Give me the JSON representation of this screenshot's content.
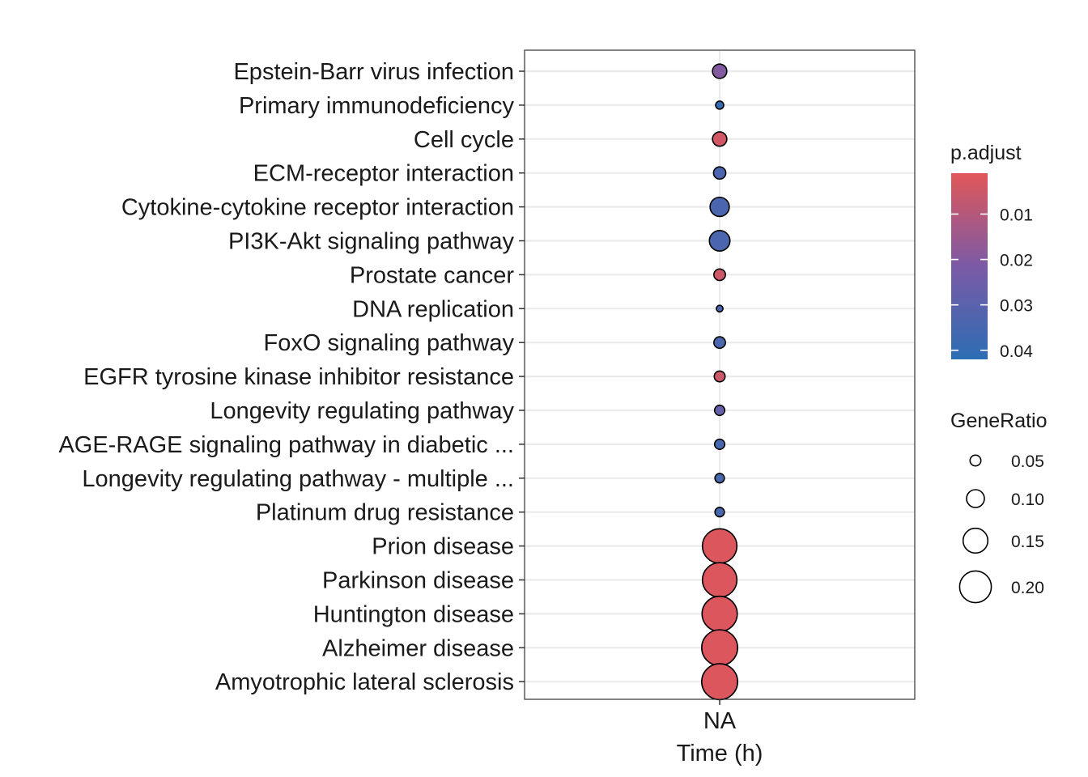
{
  "chart_data": {
    "type": "scatter",
    "xlabel": "Time (h)",
    "x_categories": [
      "NA"
    ],
    "categories": [
      "Epstein-Barr virus infection",
      "Primary immunodeficiency",
      "Cell cycle",
      "ECM-receptor interaction",
      "Cytokine-cytokine receptor interaction",
      "PI3K-Akt signaling pathway",
      "Prostate cancer",
      "DNA replication",
      "FoxO signaling pathway",
      "EGFR tyrosine kinase inhibitor resistance",
      "Longevity regulating pathway",
      "AGE-RAGE signaling pathway in diabetic ...",
      "Longevity regulating pathway - multiple ...",
      "Platinum drug resistance",
      "Prion disease",
      "Parkinson disease",
      "Huntington disease",
      "Alzheimer disease",
      "Amyotrophic lateral sclerosis"
    ],
    "points": [
      {
        "term": "Epstein-Barr virus infection",
        "x": "NA",
        "gene_ratio": 0.075,
        "p_adjust": 0.02
      },
      {
        "term": "Primary immunodeficiency",
        "x": "NA",
        "gene_ratio": 0.03,
        "p_adjust": 0.04
      },
      {
        "term": "Cell cycle",
        "x": "NA",
        "gene_ratio": 0.075,
        "p_adjust": 0.004
      },
      {
        "term": "ECM-receptor interaction",
        "x": "NA",
        "gene_ratio": 0.06,
        "p_adjust": 0.034
      },
      {
        "term": "Cytokine-cytokine receptor interaction",
        "x": "NA",
        "gene_ratio": 0.11,
        "p_adjust": 0.034
      },
      {
        "term": "PI3K-Akt signaling pathway",
        "x": "NA",
        "gene_ratio": 0.12,
        "p_adjust": 0.034
      },
      {
        "term": "Prostate cancer",
        "x": "NA",
        "gene_ratio": 0.055,
        "p_adjust": 0.005
      },
      {
        "term": "DNA replication",
        "x": "NA",
        "gene_ratio": 0.02,
        "p_adjust": 0.034
      },
      {
        "term": "FoxO signaling pathway",
        "x": "NA",
        "gene_ratio": 0.055,
        "p_adjust": 0.034
      },
      {
        "term": "EGFR tyrosine kinase inhibitor resistance",
        "x": "NA",
        "gene_ratio": 0.05,
        "p_adjust": 0.005
      },
      {
        "term": "Longevity regulating pathway",
        "x": "NA",
        "gene_ratio": 0.045,
        "p_adjust": 0.027
      },
      {
        "term": "AGE-RAGE signaling pathway in diabetic ...",
        "x": "NA",
        "gene_ratio": 0.045,
        "p_adjust": 0.035
      },
      {
        "term": "Longevity regulating pathway - multiple ...",
        "x": "NA",
        "gene_ratio": 0.04,
        "p_adjust": 0.035
      },
      {
        "term": "Platinum drug resistance",
        "x": "NA",
        "gene_ratio": 0.04,
        "p_adjust": 0.035
      },
      {
        "term": "Prion disease",
        "x": "NA",
        "gene_ratio": 0.22,
        "p_adjust": 0.002
      },
      {
        "term": "Parkinson disease",
        "x": "NA",
        "gene_ratio": 0.22,
        "p_adjust": 0.002
      },
      {
        "term": "Huntington disease",
        "x": "NA",
        "gene_ratio": 0.225,
        "p_adjust": 0.002
      },
      {
        "term": "Alzheimer disease",
        "x": "NA",
        "gene_ratio": 0.23,
        "p_adjust": 0.002
      },
      {
        "term": "Amyotrophic lateral sclerosis",
        "x": "NA",
        "gene_ratio": 0.23,
        "p_adjust": 0.002
      }
    ],
    "color_scale": {
      "title": "p.adjust",
      "low_color": "#e15759",
      "mid_color": "#7b5aa6",
      "high_color": "#2c6db3",
      "range": [
        0.001,
        0.042
      ],
      "ticks": [
        0.01,
        0.02,
        0.03,
        0.04
      ],
      "tick_labels": [
        "0.01",
        "0.02",
        "0.03",
        "0.04"
      ]
    },
    "size_scale": {
      "title": "GeneRatio",
      "ticks": [
        0.05,
        0.1,
        0.15,
        0.2
      ],
      "tick_labels": [
        "0.05",
        "0.10",
        "0.15",
        "0.20"
      ]
    },
    "grid": true,
    "legend_position": "right"
  }
}
